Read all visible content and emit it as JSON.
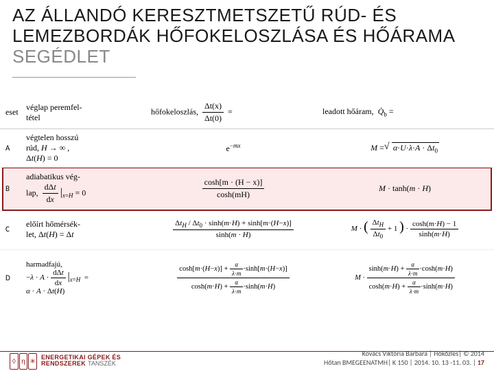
{
  "title": {
    "main": "AZ ÁLLANDÓ KERESZTMETSZETŰ RÚD- ÉS LEMEZBORDÁK HŐFOKELOSZLÁSA ÉS HŐÁRAMA",
    "subtitle": "SEGÉDLET",
    "title_color": "#1a1a1a",
    "subtitle_color": "#888888",
    "fontsize": 26
  },
  "table": {
    "header": {
      "c1": "eset",
      "c2": "véglap peremfel-tétel",
      "c3_label": "hőfokeloszlás,",
      "c3_expr_num": "Δt(x)",
      "c3_expr_den": "Δt(0)",
      "c4_label": "leadott hőáram,",
      "c4_symbol": "Q̇",
      "c4_sub": "b",
      "c4_tail": " ="
    },
    "rows": [
      {
        "id": "A",
        "desc": "végtelen hosszú rúd, H → ∞, Δt(H) = 0",
        "col3": "e^{−mx}",
        "col4": "M = √(α·U·λ·A · Δt₀)"
      },
      {
        "id": "B",
        "highlighted": true,
        "highlight_fill": "#fce9ea",
        "highlight_border": "#8a1a1a",
        "desc_line1": "adiabatikus vég-",
        "desc_line2_prefix": "lap,",
        "desc_deriv_num": "dΔt",
        "desc_deriv_den": "dx",
        "desc_deriv_sub": "x=H",
        "desc_tail": " = 0",
        "col3_num": "cosh[m · (H − x)]",
        "col3_den": "cosh(mH)",
        "col4": "M · tanh(m · H)"
      },
      {
        "id": "C",
        "desc": "előírt hőmérséklet, Δt(H) = Δt",
        "col3_num": "Δt_H / Δt₀ · sinh(m·H) + sinh[m · (H − x)]",
        "col3_den": "sinh(m · H)",
        "col4_pre": "M ·",
        "col4_paren_top_l": "Δt_H",
        "col4_paren_top_r": "Δt₀",
        "col4_plus": " + 1",
        "col4_frac_num": "cosh(m · H) − 1",
        "col4_frac_den": "sinh(m · H)"
      },
      {
        "id": "D",
        "desc_line1": "harmadfajú,",
        "desc_eq_lhs_a": "−λ · A ·",
        "desc_eq_num": "dΔt",
        "desc_eq_den": "dx",
        "desc_eq_sub": "x=H",
        "desc_eq_line2": "α · A · Δt(H)",
        "col3_num": "cosh[m · (H − x)] + (α / (λ·m)) · sinh[m · (H − x)]",
        "col3_den": "cosh(m · H) + (α / (λ·m)) · sinh(m · H)",
        "col4_pre": "M ·",
        "col4_num": "sinh(m · H) + (α / (λ·m)) · cosh(m · H)",
        "col4_den": "cosh(m · H) + (α / (λ·m)) · sinh(m · H)"
      }
    ]
  },
  "logo": {
    "line1": "ENERGETIKAI GÉPEK ÉS",
    "line2": "RENDSZEREK",
    "suffix": "TANSZÉK",
    "brand_color": "#8a1a1a"
  },
  "footer": {
    "line1_author": "Kovács Viktória Barbara",
    "line1_topic": "Hőközlés",
    "line1_year": "© 2014",
    "line2_course": "Hőtan BMEGEENATMH",
    "line2_room": "K 150",
    "line2_dates": "2014. 10. 13 -11. 03.",
    "page": "17",
    "text_color": "#444444",
    "accent_color": "#8a1a1a"
  },
  "colors": {
    "background": "#ffffff",
    "rule": "#cccccc"
  }
}
